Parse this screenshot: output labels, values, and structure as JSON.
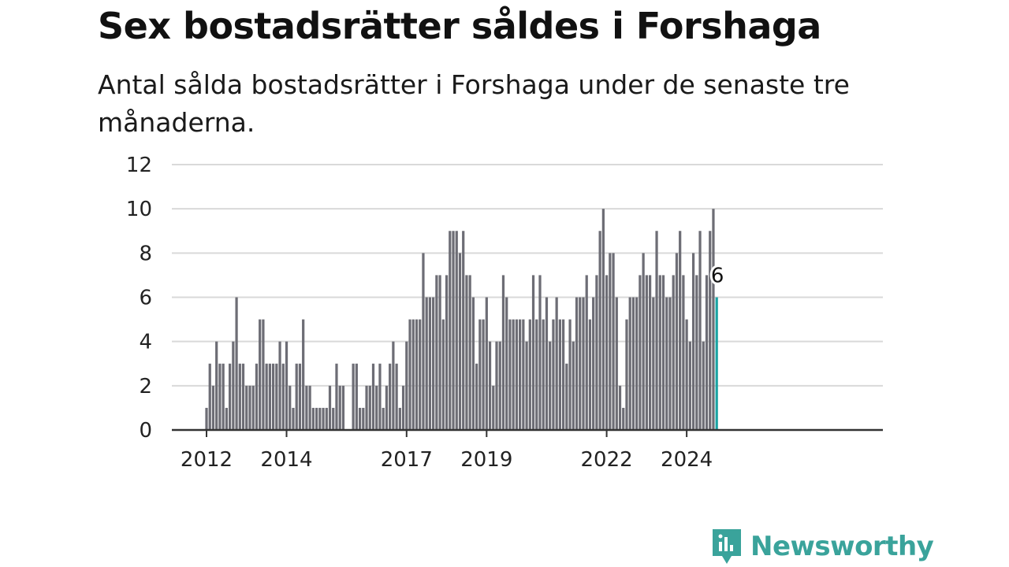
{
  "header": {
    "title": "Sex bostadsrätter såldes i Forshaga",
    "subtitle": "Antal sålda bostadsrätter i Forshaga under de senaste tre månaderna."
  },
  "brand": {
    "name": "Newsworthy",
    "color": "#3aa39b"
  },
  "colors": {
    "bar": "#6d6d75",
    "highlight": "#1aa3a3",
    "grid": "#d9d9d9",
    "axis": "#333333"
  },
  "chart_data": {
    "type": "bar",
    "title": "Sex bostadsrätter såldes i Forshaga",
    "subtitle": "Antal sålda bostadsrätter i Forshaga under de senaste tre månaderna.",
    "xlabel": "",
    "ylabel": "",
    "ylim": [
      0,
      12
    ],
    "yticks": [
      0,
      2,
      4,
      6,
      8,
      10,
      12
    ],
    "xticks": [
      {
        "label": "2012",
        "index": 0
      },
      {
        "label": "2014",
        "index": 24
      },
      {
        "label": "2017",
        "index": 60
      },
      {
        "label": "2019",
        "index": 84
      },
      {
        "label": "2022",
        "index": 120
      },
      {
        "label": "2024",
        "index": 144
      }
    ],
    "grid": true,
    "x_start": "2012-01",
    "frequency": "monthly",
    "values": [
      1,
      3,
      2,
      4,
      3,
      3,
      1,
      3,
      4,
      6,
      3,
      3,
      2,
      2,
      2,
      3,
      5,
      5,
      3,
      3,
      3,
      3,
      4,
      3,
      4,
      2,
      1,
      3,
      3,
      5,
      2,
      2,
      1,
      1,
      1,
      1,
      1,
      2,
      1,
      3,
      2,
      2,
      0,
      0,
      3,
      3,
      1,
      1,
      2,
      2,
      3,
      2,
      3,
      1,
      2,
      3,
      4,
      3,
      1,
      2,
      4,
      5,
      5,
      5,
      5,
      8,
      6,
      6,
      6,
      7,
      7,
      5,
      7,
      9,
      9,
      9,
      8,
      9,
      7,
      7,
      6,
      3,
      5,
      5,
      6,
      4,
      2,
      4,
      4,
      7,
      6,
      5,
      5,
      5,
      5,
      5,
      4,
      5,
      7,
      5,
      7,
      5,
      6,
      4,
      5,
      6,
      5,
      5,
      3,
      5,
      4,
      6,
      6,
      6,
      7,
      5,
      6,
      7,
      9,
      10,
      7,
      8,
      8,
      6,
      2,
      1,
      5,
      6,
      6,
      6,
      7,
      8,
      7,
      7,
      6,
      9,
      7,
      7,
      6,
      6,
      7,
      8,
      9,
      7,
      5,
      4,
      8,
      7,
      9,
      4,
      7,
      9,
      10,
      6
    ],
    "highlight": {
      "index": 153,
      "value": 6,
      "label": "6"
    }
  }
}
